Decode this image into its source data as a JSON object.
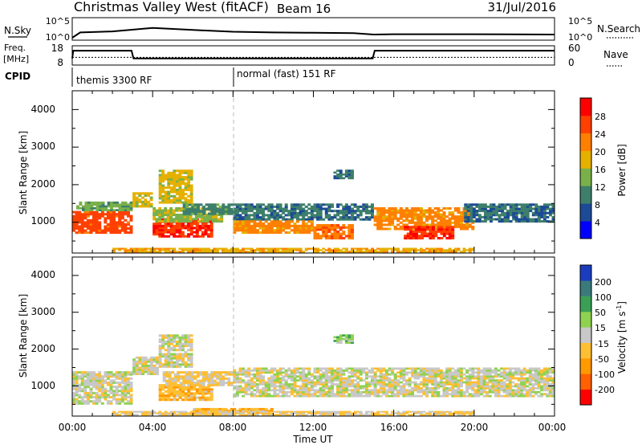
{
  "header": {
    "station": "Christmas Valley West (fitACF)",
    "beam": "Beam 16",
    "date": "31/Jul/2016"
  },
  "strip_nsky": {
    "left_label": "N.Sky",
    "right_label": "N.Search",
    "left_ticks": [
      "10^5",
      "10^0"
    ],
    "right_ticks": [
      "10^5",
      "10^0"
    ]
  },
  "strip_freq": {
    "left_label_1": "Freq.",
    "left_label_2": "[MHz]",
    "right_label": "Nave",
    "left_ticks": [
      "18",
      "8"
    ],
    "right_ticks": [
      "60",
      "0"
    ]
  },
  "cpid": {
    "label": "CPID",
    "modes": [
      {
        "name": "themis 3300 RF",
        "start_hour": 0
      },
      {
        "name": "normal (fast) 151 RF",
        "start_hour": 8
      }
    ]
  },
  "power_panel": {
    "ylabel": "Slant Range [km]",
    "yticks": [
      "4000",
      "3000",
      "2000",
      "1000"
    ],
    "colorbar_label": "Power [dB]",
    "colorbar_ticks": [
      "28",
      "24",
      "20",
      "16",
      "12",
      "8",
      "4"
    ]
  },
  "velocity_panel": {
    "ylabel": "Slant Range [km]",
    "yticks": [
      "4000",
      "3000",
      "2000",
      "1000"
    ],
    "colorbar_label": "Velocity [m s",
    "colorbar_label_exp": "-1",
    "colorbar_label_end": "]",
    "colorbar_ticks": [
      "200",
      "100",
      "50",
      "15",
      "-15",
      "-50",
      "-100",
      "-200"
    ]
  },
  "x_axis": {
    "label": "Time UT",
    "ticks": [
      "00:00",
      "04:00",
      "08:00",
      "12:00",
      "16:00",
      "20:00",
      "00:00"
    ]
  },
  "colors": {
    "power_scale": [
      "#0000ff",
      "#1d4a96",
      "#3d7f6a",
      "#7ab04a",
      "#e6b000",
      "#ff8000",
      "#ff4000",
      "#ff0000"
    ],
    "velocity_scale": [
      "#ff0000",
      "#ff6000",
      "#ff9900",
      "#ffbf33",
      "#c8c8c8",
      "#8fd24f",
      "#3aa055",
      "#3b7a7a",
      "#1a3dbf"
    ]
  },
  "chart_data": [
    {
      "type": "line",
      "title": "N.Sky / N.Search",
      "x_hours": [
        0,
        0.4,
        2,
        4,
        6,
        8,
        10,
        12,
        14,
        15,
        16,
        20,
        24
      ],
      "series": [
        {
          "name": "N.Sky",
          "log10_values": [
            0.0,
            1.5,
            1.8,
            2.8,
            2.2,
            1.7,
            1.5,
            1.4,
            1.3,
            0.9,
            1.0,
            1.0,
            0.9
          ]
        }
      ]
    },
    {
      "type": "line",
      "title": "Freq. / Nave",
      "x_hours": [
        0,
        0.05,
        2.95,
        3.05,
        14.95,
        15.05,
        24
      ],
      "series": [
        {
          "name": "Freq.",
          "values_mhz": [
            10.5,
            16.2,
            16.2,
            10.5,
            10.5,
            16.2,
            16.2
          ]
        },
        {
          "name": "Nave",
          "values": [
            20,
            20,
            20,
            20,
            20,
            20,
            20
          ]
        }
      ]
    },
    {
      "type": "heatmap",
      "title": "Power [dB]",
      "x_range_hours": [
        0,
        24
      ],
      "y_range_km": [
        180,
        4500
      ],
      "clim": [
        0,
        30
      ],
      "regions": [
        {
          "t0": 0.0,
          "t1": 3.0,
          "r0": 700,
          "r1": 1300,
          "level": 24
        },
        {
          "t0": 0.2,
          "t1": 3.0,
          "r0": 1300,
          "r1": 1550,
          "level": 12
        },
        {
          "t0": 3.0,
          "t1": 4.0,
          "r0": 1400,
          "r1": 1800,
          "level": 16
        },
        {
          "t0": 4.0,
          "t1": 7.0,
          "r0": 600,
          "r1": 1100,
          "level": 26
        },
        {
          "t0": 4.0,
          "t1": 7.5,
          "r0": 1000,
          "r1": 1400,
          "level": 14
        },
        {
          "t0": 5.5,
          "t1": 8.0,
          "r0": 1200,
          "r1": 1500,
          "level": 10
        },
        {
          "t0": 8.0,
          "t1": 15.0,
          "r0": 1050,
          "r1": 1500,
          "level": 8
        },
        {
          "t0": 8.0,
          "t1": 12.0,
          "r0": 700,
          "r1": 1050,
          "level": 20
        },
        {
          "t0": 12.0,
          "t1": 14.0,
          "r0": 550,
          "r1": 950,
          "level": 22
        },
        {
          "t0": 15.0,
          "t1": 20.0,
          "r0": 800,
          "r1": 1400,
          "level": 20
        },
        {
          "t0": 16.5,
          "t1": 19.0,
          "r0": 550,
          "r1": 900,
          "level": 26
        },
        {
          "t0": 19.5,
          "t1": 24.0,
          "r0": 1000,
          "r1": 1500,
          "level": 8
        },
        {
          "t0": 2.0,
          "t1": 20.0,
          "r0": 200,
          "r1": 320,
          "level": 18
        },
        {
          "t0": 13.0,
          "t1": 14.0,
          "r0": 2150,
          "r1": 2400,
          "level": 8
        },
        {
          "t0": 4.3,
          "t1": 6.0,
          "r0": 1500,
          "r1": 2400,
          "level": 16
        }
      ]
    },
    {
      "type": "heatmap",
      "title": "Velocity [m s-1]",
      "x_range_hours": [
        0,
        24
      ],
      "y_range_km": [
        180,
        4500
      ],
      "clim": [
        -250,
        250
      ],
      "regions": [
        {
          "t0": 0.0,
          "t1": 3.0,
          "r0": 500,
          "r1": 1400,
          "level": 0
        },
        {
          "t0": 3.0,
          "t1": 4.3,
          "r0": 1300,
          "r1": 1800,
          "level": 0
        },
        {
          "t0": 4.3,
          "t1": 7.0,
          "r0": 600,
          "r1": 1050,
          "level": -40
        },
        {
          "t0": 4.5,
          "t1": 8.0,
          "r0": 1000,
          "r1": 1400,
          "level": -20
        },
        {
          "t0": 8.0,
          "t1": 15.0,
          "r0": 700,
          "r1": 1500,
          "level": 0
        },
        {
          "t0": 15.0,
          "t1": 24.0,
          "r0": 700,
          "r1": 1500,
          "level": 0
        },
        {
          "t0": 6.0,
          "t1": 10.0,
          "r0": 250,
          "r1": 400,
          "level": -40
        },
        {
          "t0": 2.0,
          "t1": 20.0,
          "r0": 200,
          "r1": 320,
          "level": -20
        },
        {
          "t0": 4.3,
          "t1": 6.0,
          "r0": 1500,
          "r1": 2400,
          "level": 0
        },
        {
          "t0": 13.0,
          "t1": 14.0,
          "r0": 2150,
          "r1": 2400,
          "level": 30
        }
      ]
    }
  ]
}
